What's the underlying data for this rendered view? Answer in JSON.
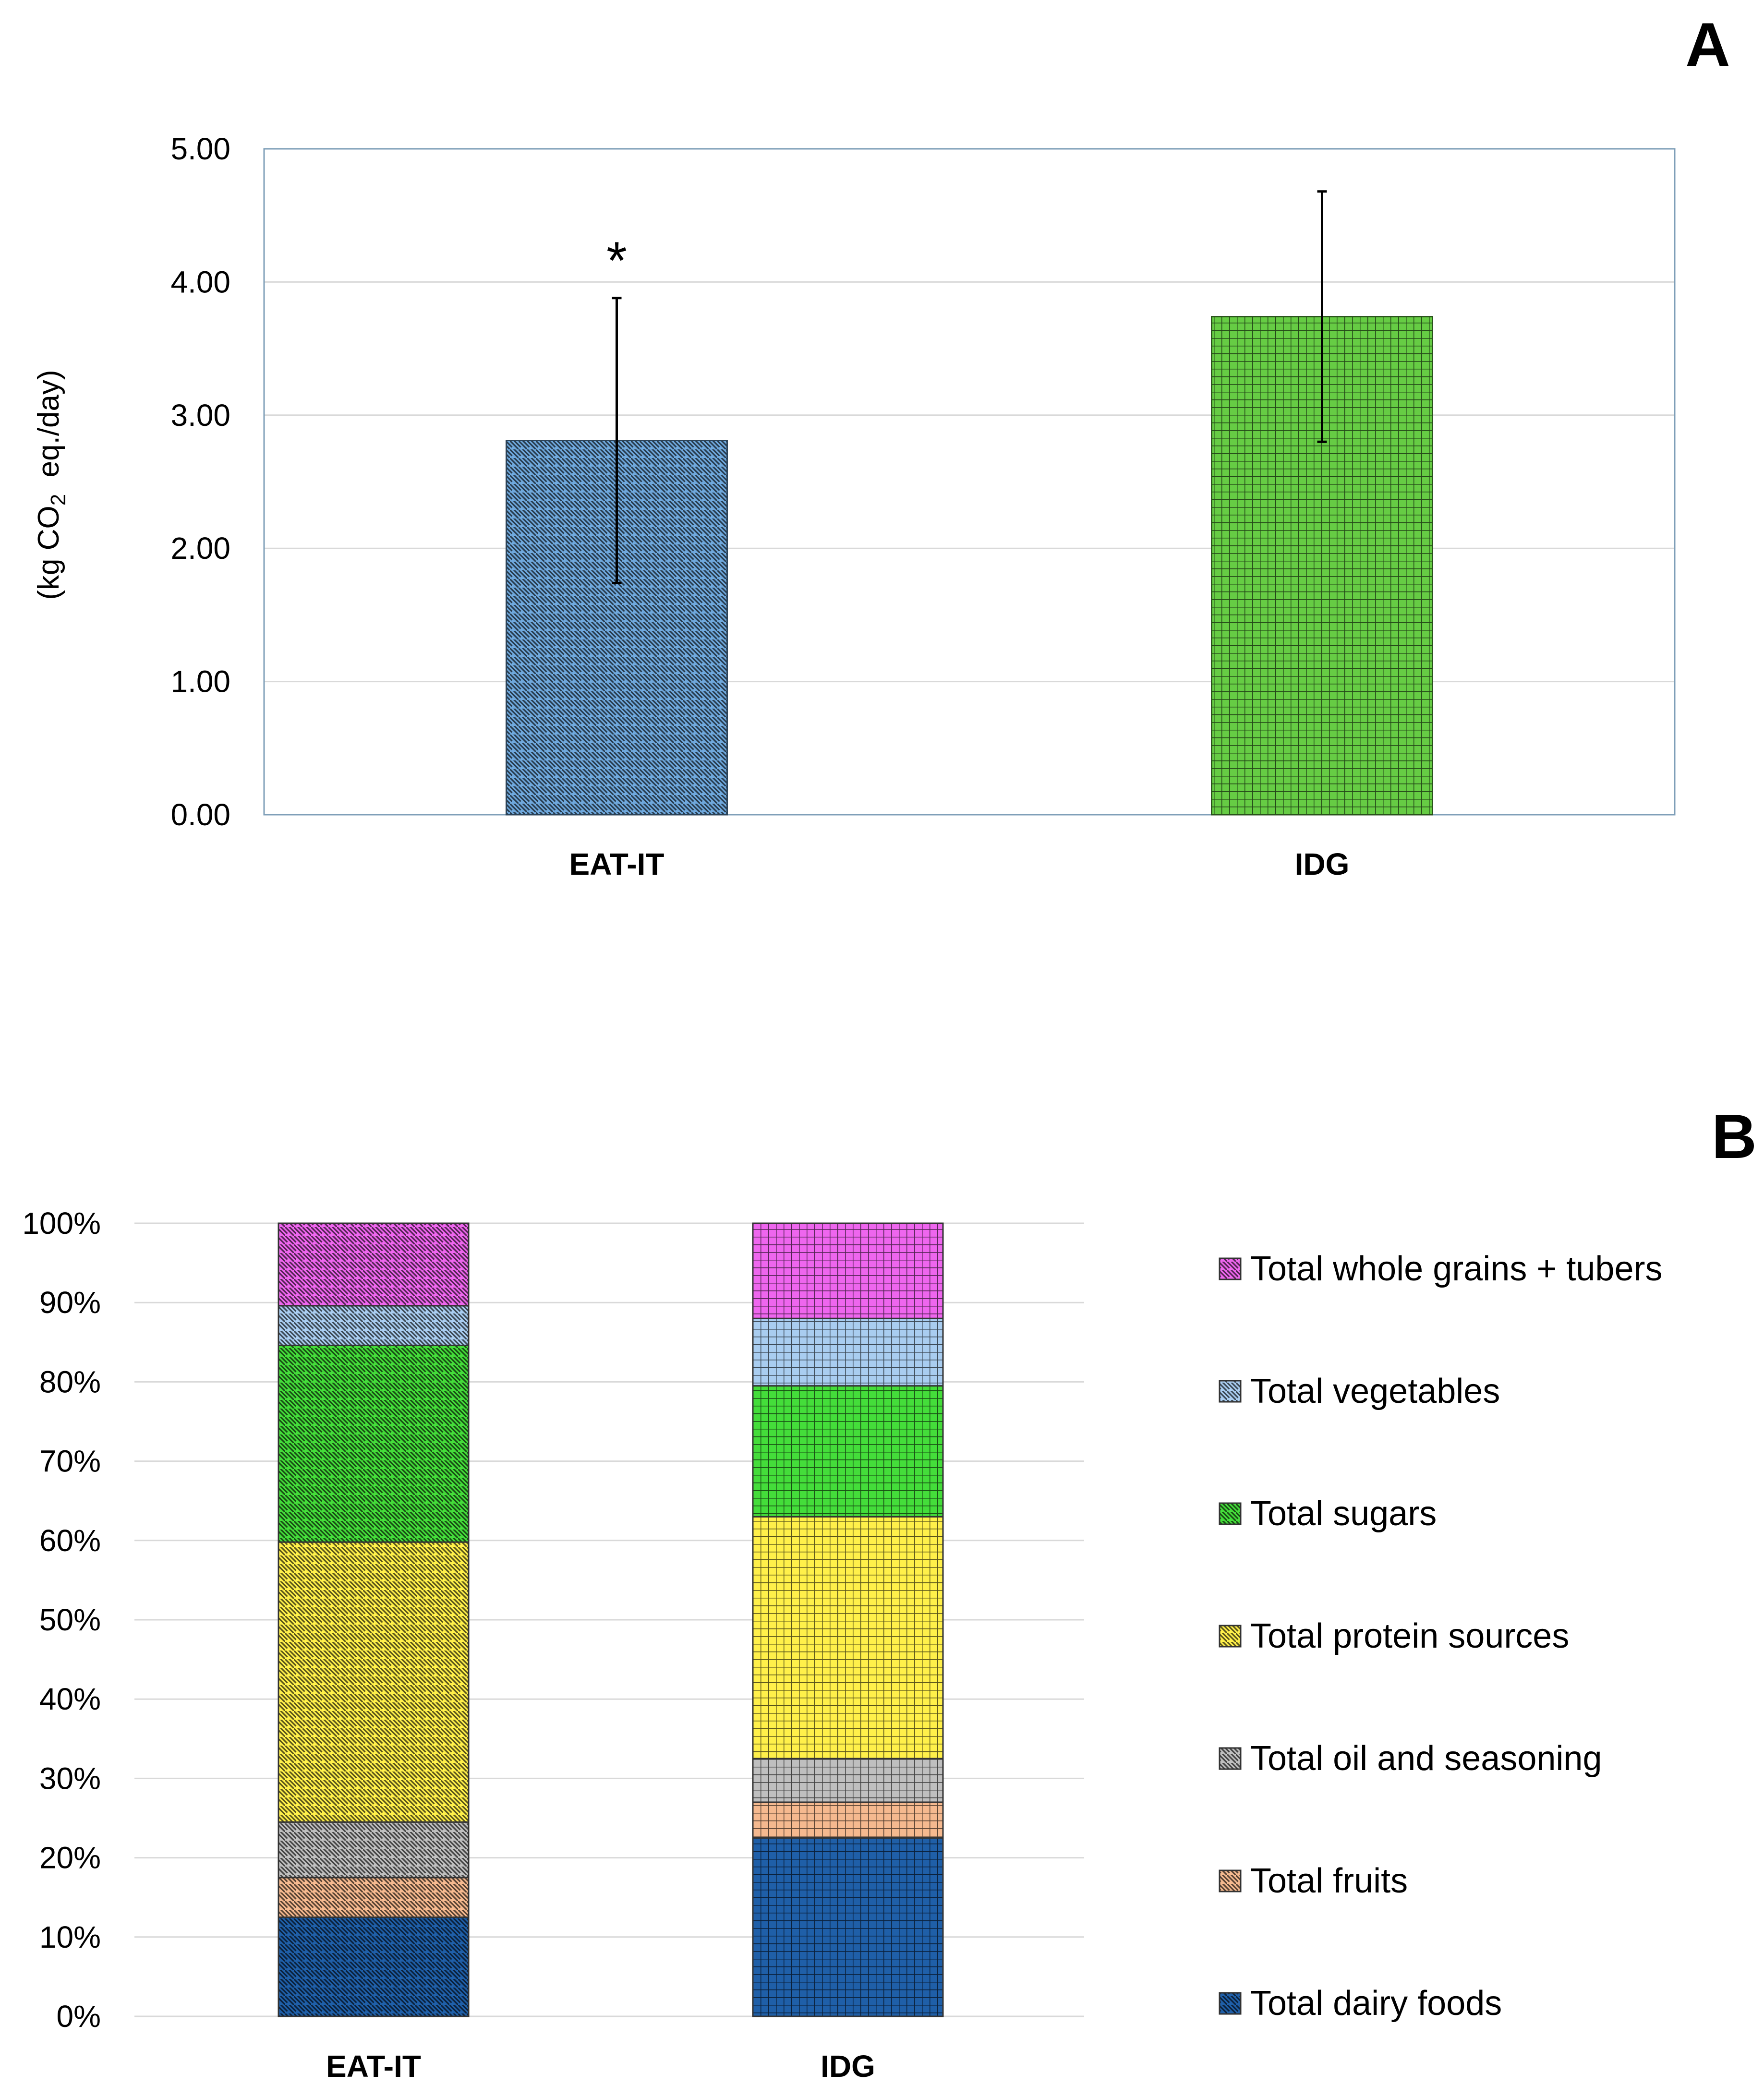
{
  "chart_data": [
    {
      "type": "bar",
      "panel_label": "A",
      "title": "",
      "ylabel_prefix": "(kg CO",
      "ylabel_sub": "2",
      "ylabel_suffix": "  eq./day)",
      "xlabel": "",
      "categories": [
        "EAT-IT",
        "IDG"
      ],
      "values": [
        2.81,
        3.74
      ],
      "errors": [
        1.07,
        0.94
      ],
      "ylim": [
        0,
        5
      ],
      "yticks": [
        "0.00",
        "1.00",
        "2.00",
        "3.00",
        "4.00",
        "5.00"
      ],
      "annotation": "*",
      "grid": true,
      "colors": {
        "EAT-IT": "#6fa8dc",
        "IDG": "#66cc44"
      },
      "patterns": {
        "EAT-IT": "diagonal",
        "IDG": "grid"
      }
    },
    {
      "type": "bar",
      "stacked": true,
      "panel_label": "B",
      "title": "",
      "categories": [
        "EAT-IT",
        "IDG"
      ],
      "ylim": [
        0,
        100
      ],
      "yticks": [
        "0%",
        "10%",
        "20%",
        "30%",
        "40%",
        "50%",
        "60%",
        "70%",
        "80%",
        "90%",
        "100%"
      ],
      "grid": true,
      "legend_position": "right",
      "patterns": {
        "EAT-IT": "diagonal",
        "IDG": "grid"
      },
      "series": [
        {
          "name": "Total dairy foods",
          "color": "#1f5fa8",
          "values": [
            12.5,
            22.5
          ]
        },
        {
          "name": "Total fruits",
          "color": "#f5b98f",
          "values": [
            5.0,
            4.5
          ]
        },
        {
          "name": "Total oil and seasoning",
          "color": "#bfbfbf",
          "values": [
            7.0,
            5.5
          ]
        },
        {
          "name": "Total protein sources",
          "color": "#fff04a",
          "values": [
            35.3,
            30.5
          ]
        },
        {
          "name": "Total sugars",
          "color": "#44dd3a",
          "values": [
            24.8,
            16.5
          ]
        },
        {
          "name": "Total vegetables",
          "color": "#a9cdf0",
          "values": [
            5.0,
            8.5
          ]
        },
        {
          "name": "Total whole grains + tubers",
          "color": "#ee66ee",
          "values": [
            10.4,
            12.0
          ]
        }
      ]
    }
  ]
}
